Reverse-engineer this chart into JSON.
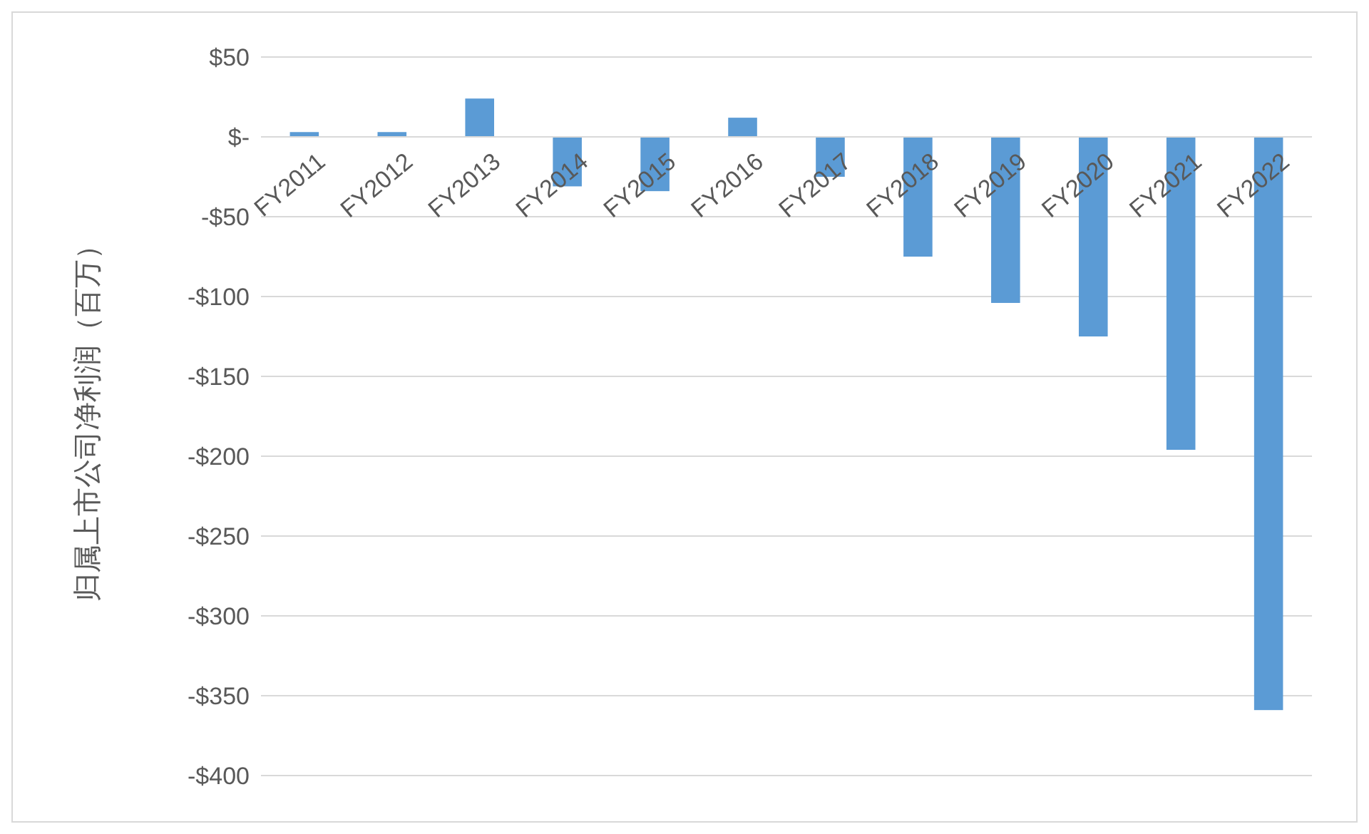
{
  "chart_data": {
    "type": "bar",
    "ylabel": "归属上市公司净利润（百万）",
    "categories": [
      "FY2011",
      "FY2012",
      "FY2013",
      "FY2014",
      "FY2015",
      "FY2016",
      "FY2017",
      "FY2018",
      "FY2019",
      "FY2020",
      "FY2021",
      "FY2022"
    ],
    "values": [
      3,
      3,
      24,
      -31,
      -34,
      12,
      -25,
      -75,
      -104,
      -125,
      -196,
      -359
    ],
    "color": "#5b9bd5",
    "ylim": [
      -400,
      50
    ],
    "yticks": [
      {
        "value": 50,
        "label": "$50"
      },
      {
        "value": 0,
        "label": "$-"
      },
      {
        "value": -50,
        "label": "-$50"
      },
      {
        "value": -100,
        "label": "-$100"
      },
      {
        "value": -150,
        "label": "-$150"
      },
      {
        "value": -200,
        "label": "-$200"
      },
      {
        "value": -250,
        "label": "-$250"
      },
      {
        "value": -300,
        "label": "-$300"
      },
      {
        "value": -350,
        "label": "-$350"
      },
      {
        "value": -400,
        "label": "-$400"
      }
    ],
    "grid": true
  }
}
